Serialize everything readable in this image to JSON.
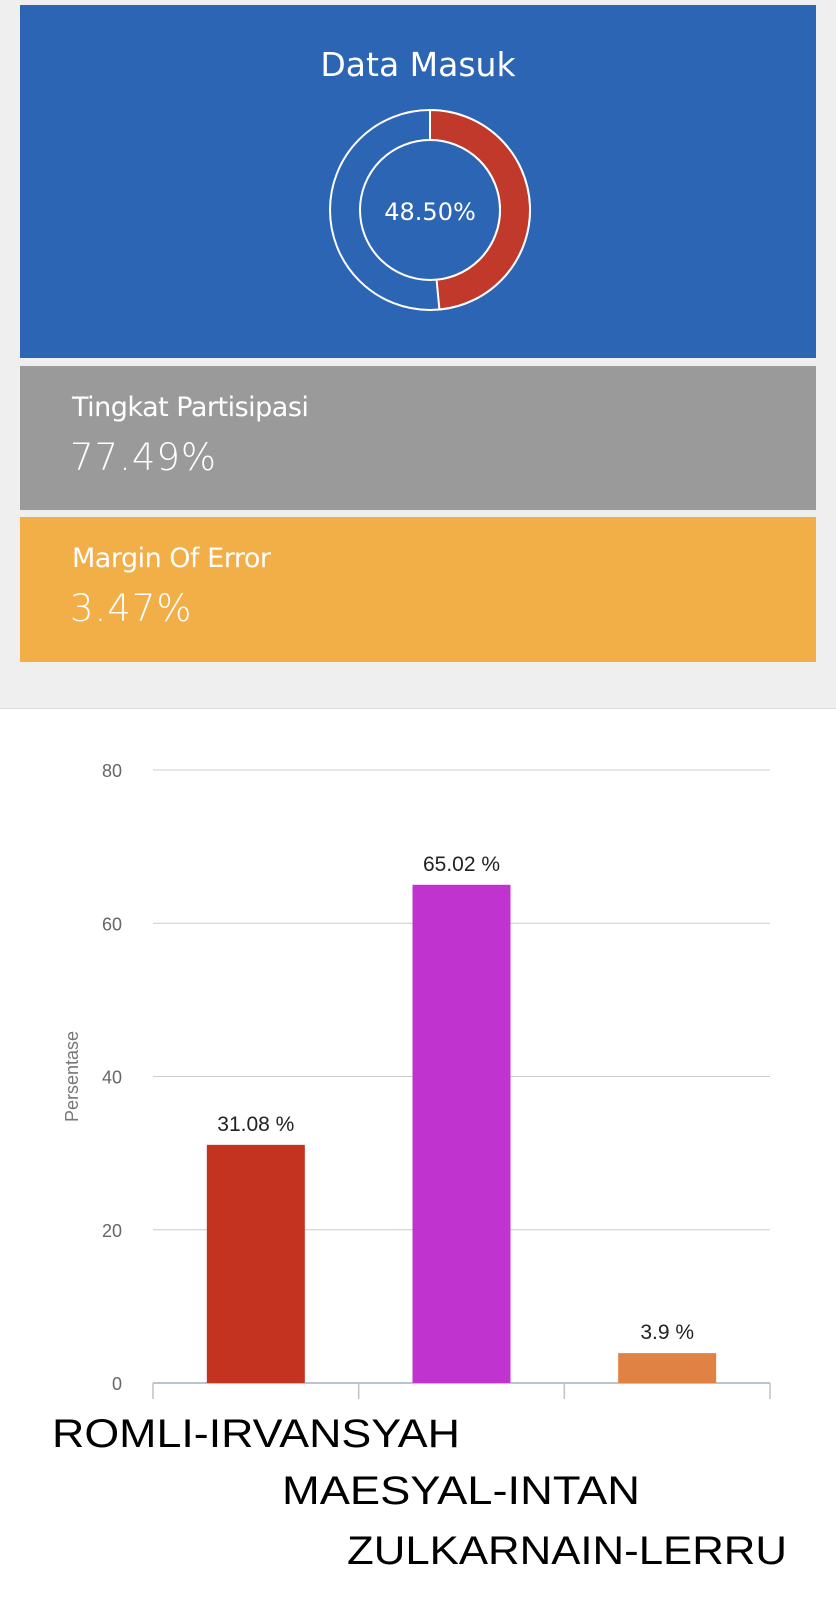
{
  "data_masuk": {
    "title": "Data Masuk",
    "percent_label": "48.50%",
    "fraction": 0.485,
    "arc_color": "#c0392b"
  },
  "partisipasi": {
    "label": "Tingkat Partisipasi",
    "value": "77.49%"
  },
  "margin": {
    "label": "Margin Of Error",
    "value": "3.47%"
  },
  "chart_data": {
    "type": "bar",
    "categories": [
      "ROMLI-IRVANSYAH",
      "MAESYAL-INTAN",
      "ZULKARNAIN-LERRU"
    ],
    "values": [
      31.08,
      65.02,
      3.9
    ],
    "data_labels": [
      "31.08 %",
      "65.02 %",
      "3.9 %"
    ],
    "colors": [
      "#c4331f",
      "#c133cf",
      "#e08244"
    ],
    "ylabel": "Persentase",
    "xlabel": "",
    "ylim": [
      0,
      80
    ],
    "yticks": [
      "0",
      "20",
      "40",
      "60",
      "80"
    ],
    "grid": true
  }
}
